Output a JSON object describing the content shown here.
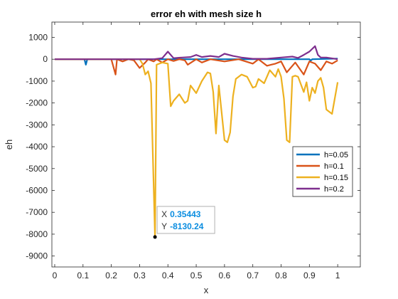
{
  "chart_data": {
    "type": "line",
    "title": "error eh with mesh size h",
    "xlabel": "x",
    "ylabel": "eh",
    "xlim": [
      -0.01,
      1.08
    ],
    "ylim": [
      -9500,
      1700
    ],
    "xticks": [
      0,
      0.1,
      0.2,
      0.3,
      0.4,
      0.5,
      0.6,
      0.7,
      0.8,
      0.9,
      1
    ],
    "xtick_labels": [
      "0",
      "0.1",
      "0.2",
      "0.3",
      "0.4",
      "0.5",
      "0.6",
      "0.7",
      "0.8",
      "0.9",
      "1"
    ],
    "yticks": [
      1000,
      0,
      -1000,
      -2000,
      -3000,
      -4000,
      -5000,
      -6000,
      -7000,
      -8000,
      -9000
    ],
    "ytick_labels": [
      "1000",
      "0",
      "-1000",
      "-2000",
      "-3000",
      "-4000",
      "-5000",
      "-6000",
      "-7000",
      "-8000",
      "-9000"
    ],
    "grid": false,
    "legend_position": "right",
    "series": [
      {
        "name": "h=0.05",
        "color": "#0072BD",
        "x": [
          0,
          0.105,
          0.11,
          0.115,
          0.3,
          0.45,
          0.9,
          0.905,
          0.91,
          1
        ],
        "y": [
          0,
          0,
          -250,
          0,
          0,
          0,
          0,
          -60,
          0,
          30
        ]
      },
      {
        "name": "h=0.1",
        "color": "#D95319",
        "x": [
          0,
          0.2,
          0.215,
          0.22,
          0.24,
          0.26,
          0.28,
          0.3,
          0.32,
          0.33,
          0.35,
          0.36,
          0.38,
          0.4,
          0.42,
          0.44,
          0.46,
          0.47,
          0.5,
          0.52,
          0.55,
          0.6,
          0.65,
          0.7,
          0.72,
          0.75,
          0.78,
          0.8,
          0.82,
          0.85,
          0.88,
          0.9,
          0.92,
          0.94,
          0.96,
          0.98,
          1
        ],
        "y": [
          0,
          0,
          -700,
          0,
          -100,
          0,
          -50,
          -400,
          -150,
          0,
          -100,
          0,
          -150,
          0,
          -80,
          0,
          -50,
          -250,
          0,
          -150,
          0,
          -100,
          0,
          -200,
          0,
          -300,
          -200,
          -100,
          -600,
          -150,
          -700,
          -100,
          -200,
          -500,
          -100,
          -200,
          -50
        ]
      },
      {
        "name": "h=0.15",
        "color": "#EDB120",
        "x": [
          0,
          0.3,
          0.31,
          0.32,
          0.33,
          0.34,
          0.35443,
          0.36,
          0.38,
          0.4,
          0.41,
          0.42,
          0.44,
          0.46,
          0.47,
          0.48,
          0.5,
          0.52,
          0.54,
          0.55,
          0.56,
          0.57,
          0.58,
          0.6,
          0.61,
          0.62,
          0.63,
          0.64,
          0.66,
          0.68,
          0.7,
          0.71,
          0.72,
          0.74,
          0.76,
          0.78,
          0.79,
          0.8,
          0.81,
          0.82,
          0.83,
          0.84,
          0.85,
          0.86,
          0.88,
          0.89,
          0.9,
          0.91,
          0.92,
          0.93,
          0.94,
          0.95,
          0.96,
          0.98,
          1
        ],
        "y": [
          0,
          0,
          -200,
          -700,
          -550,
          -1100,
          -8130.24,
          -250,
          -150,
          -200,
          -2150,
          -1900,
          -1600,
          -2000,
          -1900,
          -1200,
          -1550,
          -1000,
          -600,
          -650,
          -1500,
          -3400,
          -1200,
          -3700,
          -3800,
          -3350,
          -1700,
          -900,
          -700,
          -800,
          -1300,
          -1250,
          -900,
          -1100,
          -500,
          -800,
          -450,
          -800,
          -1800,
          -3700,
          -3800,
          -800,
          -750,
          -800,
          -1500,
          -1050,
          -1900,
          -1300,
          -1550,
          -1000,
          -850,
          -1300,
          -2300,
          -2500,
          -1050
        ]
      },
      {
        "name": "h=0.2",
        "color": "#7E2F8E",
        "x": [
          0,
          0.35,
          0.38,
          0.4,
          0.42,
          0.45,
          0.48,
          0.5,
          0.52,
          0.55,
          0.58,
          0.6,
          0.63,
          0.66,
          0.7,
          0.75,
          0.8,
          0.84,
          0.86,
          0.88,
          0.9,
          0.92,
          0.93,
          0.94,
          0.96,
          1
        ],
        "y": [
          0,
          0,
          50,
          350,
          50,
          80,
          100,
          200,
          100,
          150,
          100,
          250,
          150,
          80,
          20,
          20,
          80,
          120,
          60,
          200,
          350,
          600,
          200,
          80,
          80,
          0
        ]
      }
    ],
    "datatip": {
      "x_label": "X",
      "x_value": "0.35443",
      "y_label": "Y",
      "y_value": "-8130.24",
      "x": 0.35443,
      "y": -8130.24
    }
  }
}
